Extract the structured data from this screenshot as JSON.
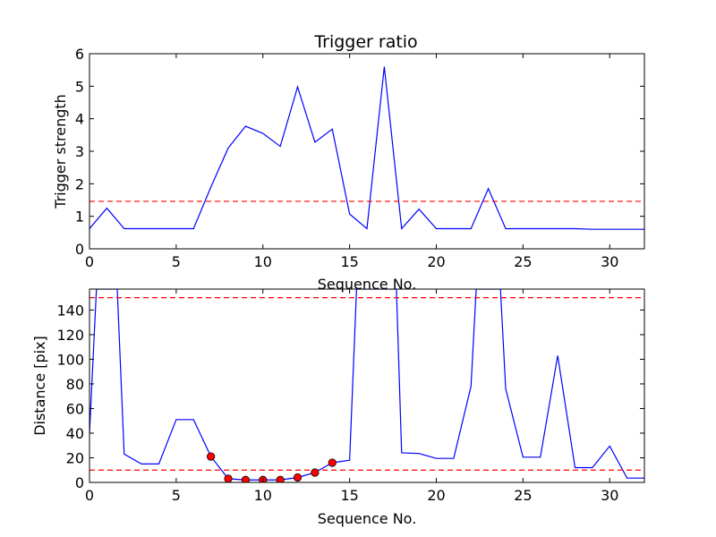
{
  "chart_data": [
    {
      "type": "line",
      "title": "Trigger ratio",
      "xlabel": "Sequence No.",
      "ylabel": "Trigger strength",
      "xlim": [
        0,
        32
      ],
      "ylim": [
        0,
        6
      ],
      "xticks": [
        0,
        5,
        10,
        15,
        20,
        25,
        30
      ],
      "yticks": [
        0,
        1,
        2,
        3,
        4,
        5,
        6
      ],
      "grid": false,
      "series": [
        {
          "color": "#0000ff",
          "x": [
            0,
            1,
            2,
            3,
            4,
            5,
            6,
            7,
            8,
            9,
            10,
            11,
            12,
            13,
            14,
            15,
            16,
            17,
            18,
            19,
            20,
            21,
            22,
            23,
            24,
            25,
            26,
            27,
            28,
            29,
            30,
            31,
            32
          ],
          "values": [
            0.62,
            1.25,
            0.62,
            0.62,
            0.62,
            0.62,
            0.62,
            1.9,
            3.1,
            3.77,
            3.55,
            3.15,
            4.98,
            3.28,
            3.68,
            1.07,
            0.62,
            5.6,
            0.62,
            1.22,
            0.62,
            0.62,
            0.62,
            1.85,
            0.62,
            0.62,
            0.62,
            0.62,
            0.62,
            0.6,
            0.6,
            0.6,
            0.6
          ]
        }
      ],
      "hlines": [
        {
          "y": 1.46,
          "color": "#ff0000",
          "style": "dashed"
        }
      ]
    },
    {
      "type": "line",
      "title": "",
      "xlabel": "Sequence No.",
      "ylabel": "Distance [pix]",
      "xlim": [
        0,
        32
      ],
      "ylim": [
        0,
        157
      ],
      "xticks": [
        0,
        5,
        10,
        15,
        20,
        25,
        30
      ],
      "yticks": [
        0,
        20,
        40,
        60,
        80,
        100,
        120,
        140
      ],
      "grid": false,
      "series": [
        {
          "color": "#0000ff",
          "x": [
            0,
            0.4,
            1.6,
            2,
            3,
            4,
            5,
            6,
            7,
            8,
            9,
            10,
            11,
            12,
            13,
            14,
            15,
            15.4,
            17.7,
            18,
            19,
            20,
            21,
            22,
            22.3,
            23.7,
            24,
            25,
            26,
            27,
            28,
            29,
            30,
            31,
            32
          ],
          "values": [
            40,
            157,
            157,
            23,
            15,
            15,
            51,
            51,
            21,
            3,
            2,
            2,
            2,
            4,
            8,
            16,
            18,
            157,
            157,
            24,
            23.5,
            19.5,
            19.5,
            78,
            157,
            157,
            76,
            20.5,
            20.5,
            103,
            12,
            12,
            29.5,
            3.5,
            3.5
          ]
        }
      ],
      "markers": {
        "color": "#ff0000",
        "x": [
          7,
          8,
          9,
          10,
          11,
          12,
          13,
          14
        ],
        "values": [
          21,
          3,
          2,
          2,
          2,
          4,
          8,
          16
        ]
      },
      "hlines": [
        {
          "y": 150,
          "color": "#ff0000",
          "style": "dashed"
        },
        {
          "y": 10,
          "color": "#ff0000",
          "style": "dashed"
        }
      ]
    }
  ]
}
